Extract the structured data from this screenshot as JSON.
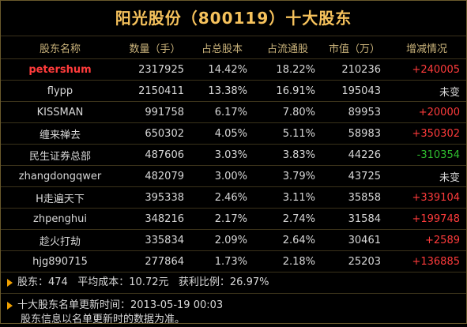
{
  "title": "阳光股份（800119）十大股东",
  "headers": [
    "股东名称",
    "数量（手）",
    "占总股本",
    "占流通股",
    "市值（万）",
    "增减情况"
  ],
  "rows": [
    {
      "name": "petershum",
      "qty": "2317925",
      "total": "14.42%",
      "float": "18.22%",
      "mv": "210236",
      "chg": "+240005",
      "chg_color": "red",
      "highlight": true
    },
    {
      "name": "flypp",
      "qty": "2150411",
      "total": "13.38%",
      "float": "16.91%",
      "mv": "195043",
      "chg": "未变",
      "chg_color": "white"
    },
    {
      "name": "KISSMAN",
      "qty": "991758",
      "total": "6.17%",
      "float": "7.80%",
      "mv": "89953",
      "chg": "+20000",
      "chg_color": "red"
    },
    {
      "name": "缠来禅去",
      "qty": "650302",
      "total": "4.05%",
      "float": "5.11%",
      "mv": "58983",
      "chg": "+350302",
      "chg_color": "red"
    },
    {
      "name": "民生证券总部",
      "qty": "487606",
      "total": "3.03%",
      "float": "3.83%",
      "mv": "44226",
      "chg": "-310354",
      "chg_color": "green"
    },
    {
      "name": "zhangdongqwer",
      "qty": "482079",
      "total": "3.00%",
      "float": "3.79%",
      "mv": "43725",
      "chg": "未变",
      "chg_color": "white"
    },
    {
      "name": "H走遍天下",
      "qty": "395338",
      "total": "2.46%",
      "float": "3.11%",
      "mv": "35858",
      "chg": "+339104",
      "chg_color": "red"
    },
    {
      "name": "zhpenghui",
      "qty": "348216",
      "total": "2.17%",
      "float": "2.74%",
      "mv": "31584",
      "chg": "+199748",
      "chg_color": "red"
    },
    {
      "name": "趁火打劫",
      "qty": "335834",
      "total": "2.09%",
      "float": "2.64%",
      "mv": "30461",
      "chg": "+2589",
      "chg_color": "red"
    },
    {
      "name": "hjg890715",
      "qty": "277864",
      "total": "1.73%",
      "float": "2.18%",
      "mv": "25203",
      "chg": "+136885",
      "chg_color": "red"
    }
  ],
  "summary": {
    "shareholders_label": "股东：",
    "shareholders": "474",
    "avg_cost_label": "平均成本：",
    "avg_cost": "10.72元",
    "profit_label": "获利比例：",
    "profit_ratio": "26.97%"
  },
  "update": {
    "label": "十大股东名单更新时间：",
    "time": "2013-05-19 00:03",
    "note": "股东信息以名单更新时的数据为准。"
  },
  "colors": {
    "title": "#f6c25c",
    "header": "#c9b27a",
    "up": "#ff3b3b",
    "down": "#2fbe2f",
    "border": "#3a321a"
  }
}
